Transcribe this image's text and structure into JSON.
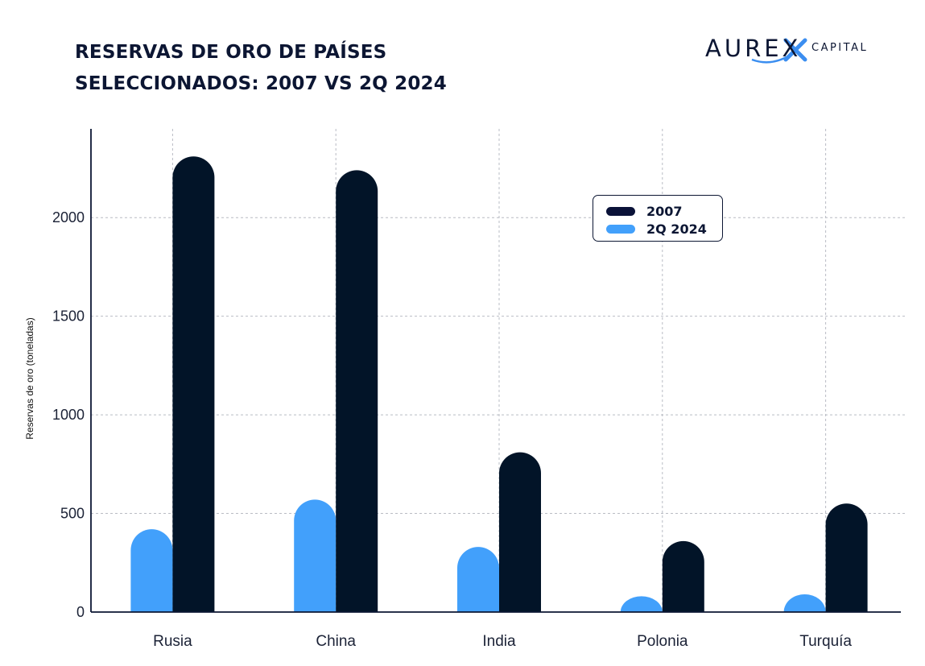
{
  "title_lines": [
    "RESERVAS DE ORO DE PAÍSES",
    "SELECCIONADOS: 2007 VS 2Q 2024"
  ],
  "logo": {
    "word": "AUREX",
    "sub": "CAPITAL",
    "accent": "#3b8ef0"
  },
  "chart_data": {
    "type": "bar",
    "categories": [
      "Rusia",
      "China",
      "India",
      "Polonia",
      "Turquía"
    ],
    "series": [
      {
        "name": "2Q 2024",
        "color": "#42a0fb",
        "values": [
          420,
          570,
          330,
          80,
          90
        ]
      },
      {
        "name": "2007",
        "color": "#021428",
        "values": [
          2310,
          2240,
          810,
          360,
          550
        ]
      }
    ],
    "ylabel": "Reservas de oro (toneladas)",
    "xlabel": "",
    "ylim": [
      0,
      2450
    ],
    "yticks": [
      0,
      500,
      1000,
      1500,
      2000
    ],
    "grid": true,
    "legend": {
      "placement": "top-center-right",
      "entries": [
        {
          "name": "2007",
          "color": "#0a1238"
        },
        {
          "name": "2Q 2024",
          "color": "#42a0fb"
        }
      ]
    }
  }
}
